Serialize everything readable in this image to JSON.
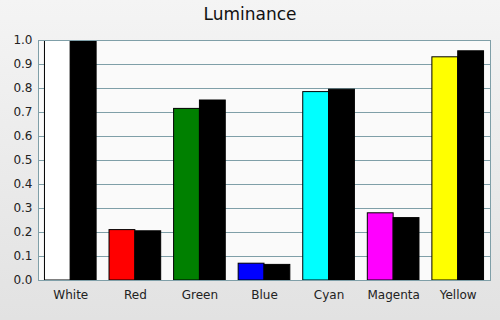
{
  "chart_data": {
    "type": "bar",
    "title": "Luminance",
    "categories": [
      "White",
      "Red",
      "Green",
      "Blue",
      "Cyan",
      "Magenta",
      "Yellow"
    ],
    "series": [
      {
        "colors": [
          "#ffffff",
          "#ff0000",
          "#008000",
          "#0000ff",
          "#00ffff",
          "#ff00ff",
          "#ffff00"
        ],
        "values": [
          1.0,
          0.21,
          0.715,
          0.07,
          0.785,
          0.28,
          0.93
        ]
      },
      {
        "color": "#000000",
        "values": [
          1.0,
          0.205,
          0.75,
          0.065,
          0.795,
          0.26,
          0.955
        ]
      }
    ],
    "ylim": [
      0,
      1
    ],
    "yticks": [
      {
        "value": 0,
        "label": "0.0"
      },
      0.1,
      0.2,
      0.3,
      0.4,
      0.5,
      0.6,
      0.7,
      0.8,
      0.9,
      {
        "value": 1,
        "label": "1.0"
      }
    ],
    "grid": true
  }
}
